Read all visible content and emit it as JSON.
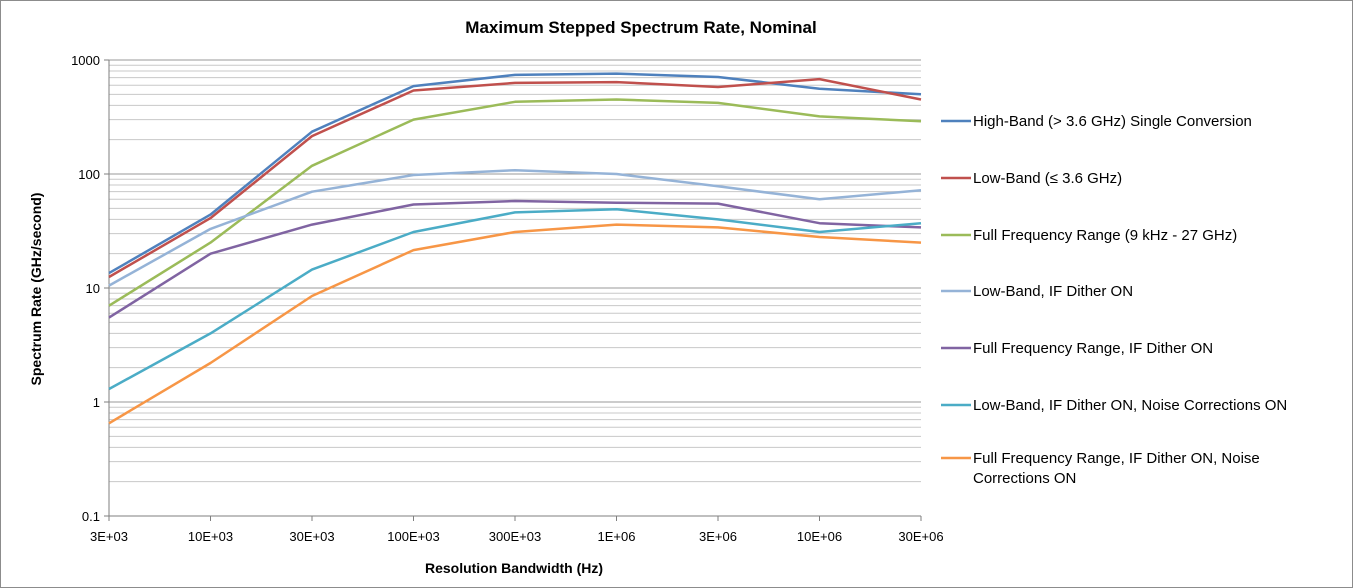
{
  "chart_data": {
    "type": "line",
    "title": "Maximum Stepped Spectrum Rate, Nominal",
    "xlabel": "Resolution Bandwidth (Hz)",
    "ylabel": "Spectrum Rate (GHz/second)",
    "y_scale": "log",
    "ylim": [
      0.1,
      1000
    ],
    "y_ticks": [
      "0.1",
      "1",
      "10",
      "100",
      "1000"
    ],
    "grid": true,
    "legend_position": "right",
    "categories": [
      "3E+03",
      "10E+03",
      "30E+03",
      "100E+03",
      "300E+03",
      "1E+06",
      "3E+06",
      "10E+06",
      "30E+06"
    ],
    "series": [
      {
        "name": "High-Band (> 3.6 GHz) Single Conversion",
        "color": "#4f81bd",
        "values": [
          13.5,
          44,
          235,
          590,
          740,
          760,
          710,
          560,
          500
        ]
      },
      {
        "name": "Low-Band (≤ 3.6 GHz)",
        "color": "#c0504d",
        "values": [
          12.5,
          41,
          215,
          540,
          630,
          640,
          580,
          680,
          450
        ]
      },
      {
        "name": "Full Frequency Range (9 kHz - 27 GHz)",
        "color": "#9bbb59",
        "values": [
          7,
          25,
          118,
          300,
          430,
          450,
          420,
          320,
          290
        ]
      },
      {
        "name": "Low-Band, IF Dither ON",
        "color": "#95b3d7",
        "values": [
          10.5,
          33,
          70,
          98,
          108,
          100,
          78,
          60,
          72
        ]
      },
      {
        "name": "Full Frequency Range, IF Dither ON",
        "color": "#8064a2",
        "values": [
          5.5,
          20,
          36,
          54,
          58,
          56,
          55,
          37,
          34
        ]
      },
      {
        "name": "Low-Band, IF Dither ON, Noise Corrections ON",
        "color": "#4bacc6",
        "values": [
          1.3,
          4,
          14.5,
          31,
          46,
          49,
          40,
          31,
          37
        ]
      },
      {
        "name": "Full Frequency Range, IF Dither ON, Noise Corrections ON",
        "name_lines": [
          "Full Frequency Range, IF Dither ON, Noise",
          "Corrections ON"
        ],
        "color": "#f79646",
        "values": [
          0.65,
          2.2,
          8.5,
          21.5,
          31,
          36,
          34,
          28,
          25
        ]
      }
    ]
  }
}
